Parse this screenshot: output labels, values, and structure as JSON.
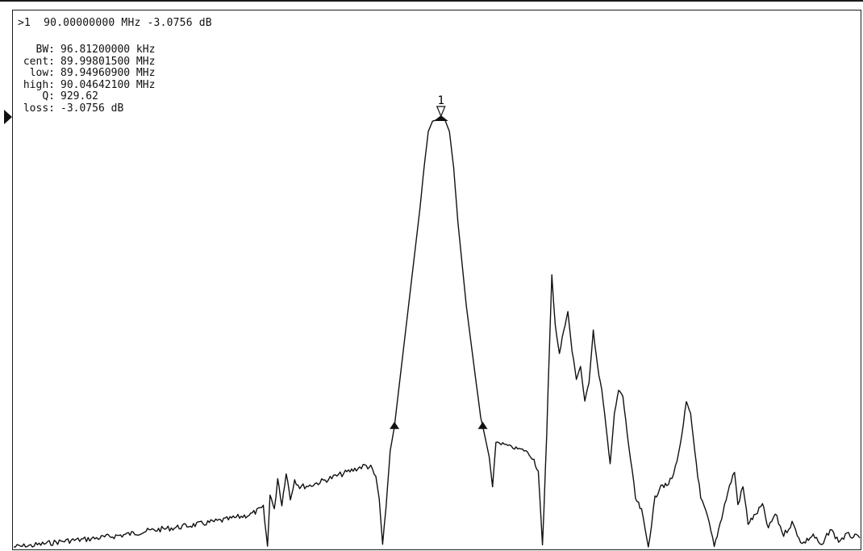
{
  "marker_readout": ">1  90.00000000 MHz -3.0756 dB",
  "stats": [
    {
      "label": "BW:",
      "value": "96.81200000 kHz"
    },
    {
      "label": "cent:",
      "value": "89.99801500 MHz"
    },
    {
      "label": "low:",
      "value": "89.94960900 MHz"
    },
    {
      "label": "high:",
      "value": "90.04642100 MHz"
    },
    {
      "label": "Q:",
      "value": "929.62"
    },
    {
      "label": "loss:",
      "value": "-3.0756 dB"
    }
  ],
  "marker_label": "1",
  "colors": {
    "trace": "#111111",
    "background": "#ffffff"
  },
  "chart_data": {
    "type": "line",
    "title": "",
    "xlabel": "",
    "ylabel": "",
    "grid": false,
    "marker": {
      "id": "1",
      "frequency_mhz": 90.0,
      "level_db": -3.0756
    },
    "bandwidth_markers_mhz": [
      89.949609,
      90.046421
    ],
    "series": [
      {
        "trace_shape_points": [
          [
            0.0,
            -74.0
          ],
          [
            0.02,
            -73.8
          ],
          [
            0.04,
            -73.4
          ],
          [
            0.06,
            -73.0
          ],
          [
            0.08,
            -72.8
          ],
          [
            0.1,
            -72.5
          ],
          [
            0.13,
            -72.0
          ],
          [
            0.16,
            -71.3
          ],
          [
            0.19,
            -70.8
          ],
          [
            0.22,
            -70.2
          ],
          [
            0.25,
            -69.5
          ],
          [
            0.28,
            -68.6
          ],
          [
            0.295,
            -67.5
          ],
          [
            0.3,
            -74.0
          ],
          [
            0.303,
            -65.0
          ],
          [
            0.308,
            -68.0
          ],
          [
            0.312,
            -62.5
          ],
          [
            0.317,
            -67.0
          ],
          [
            0.322,
            -61.5
          ],
          [
            0.327,
            -66.0
          ],
          [
            0.332,
            -62.8
          ],
          [
            0.338,
            -64.0
          ],
          [
            0.35,
            -63.8
          ],
          [
            0.37,
            -62.8
          ],
          [
            0.39,
            -61.8
          ],
          [
            0.405,
            -61.0
          ],
          [
            0.415,
            -60.5
          ],
          [
            0.422,
            -60.8
          ],
          [
            0.428,
            -62.5
          ],
          [
            0.432,
            -66.0
          ],
          [
            0.436,
            -74.0
          ],
          [
            0.44,
            -67.5
          ],
          [
            0.445,
            -58.0
          ],
          [
            0.45,
            -54.0
          ],
          [
            0.46,
            -42.0
          ],
          [
            0.47,
            -30.0
          ],
          [
            0.48,
            -18.0
          ],
          [
            0.485,
            -11.0
          ],
          [
            0.49,
            -5.0
          ],
          [
            0.495,
            -3.3
          ],
          [
            0.5,
            -3.1
          ],
          [
            0.505,
            -3.0
          ],
          [
            0.51,
            -3.2
          ],
          [
            0.515,
            -5.0
          ],
          [
            0.52,
            -11.0
          ],
          [
            0.525,
            -20.0
          ],
          [
            0.535,
            -34.0
          ],
          [
            0.545,
            -45.0
          ],
          [
            0.552,
            -52.5
          ],
          [
            0.556,
            -55.0
          ],
          [
            0.562,
            -59.0
          ],
          [
            0.566,
            -64.0
          ],
          [
            0.57,
            -56.5
          ],
          [
            0.58,
            -57.0
          ],
          [
            0.59,
            -57.5
          ],
          [
            0.605,
            -58.0
          ],
          [
            0.615,
            -59.5
          ],
          [
            0.62,
            -61.5
          ],
          [
            0.625,
            -74.0
          ],
          [
            0.63,
            -55.0
          ],
          [
            0.633,
            -42.0
          ],
          [
            0.636,
            -29.0
          ],
          [
            0.64,
            -37.0
          ],
          [
            0.645,
            -42.0
          ],
          [
            0.65,
            -38.0
          ],
          [
            0.655,
            -35.0
          ],
          [
            0.66,
            -41.5
          ],
          [
            0.665,
            -46.0
          ],
          [
            0.67,
            -44.0
          ],
          [
            0.675,
            -50.0
          ],
          [
            0.68,
            -46.5
          ],
          [
            0.685,
            -38.0
          ],
          [
            0.69,
            -44.0
          ],
          [
            0.695,
            -48.0
          ],
          [
            0.7,
            -54.0
          ],
          [
            0.705,
            -60.0
          ],
          [
            0.71,
            -52.0
          ],
          [
            0.715,
            -48.0
          ],
          [
            0.72,
            -49.0
          ],
          [
            0.725,
            -55.0
          ],
          [
            0.735,
            -66.0
          ],
          [
            0.742,
            -68.0
          ],
          [
            0.75,
            -74.0
          ],
          [
            0.758,
            -66.0
          ],
          [
            0.765,
            -63.5
          ],
          [
            0.772,
            -64.0
          ],
          [
            0.78,
            -62.0
          ],
          [
            0.788,
            -57.0
          ],
          [
            0.795,
            -50.0
          ],
          [
            0.8,
            -52.0
          ],
          [
            0.805,
            -58.0
          ],
          [
            0.812,
            -66.0
          ],
          [
            0.82,
            -69.0
          ],
          [
            0.828,
            -74.0
          ],
          [
            0.835,
            -70.0
          ],
          [
            0.842,
            -66.0
          ],
          [
            0.848,
            -63.0
          ],
          [
            0.852,
            -61.5
          ],
          [
            0.856,
            -67.0
          ],
          [
            0.862,
            -64.0
          ],
          [
            0.868,
            -70.0
          ],
          [
            0.875,
            -69.0
          ],
          [
            0.885,
            -67.0
          ],
          [
            0.892,
            -71.0
          ],
          [
            0.9,
            -68.5
          ],
          [
            0.91,
            -72.0
          ],
          [
            0.92,
            -70.0
          ],
          [
            0.932,
            -73.5
          ],
          [
            0.945,
            -72.0
          ],
          [
            0.955,
            -74.0
          ],
          [
            0.965,
            -71.0
          ],
          [
            0.975,
            -73.0
          ],
          [
            0.985,
            -72.0
          ],
          [
            1.0,
            -72.5
          ]
        ]
      }
    ]
  }
}
